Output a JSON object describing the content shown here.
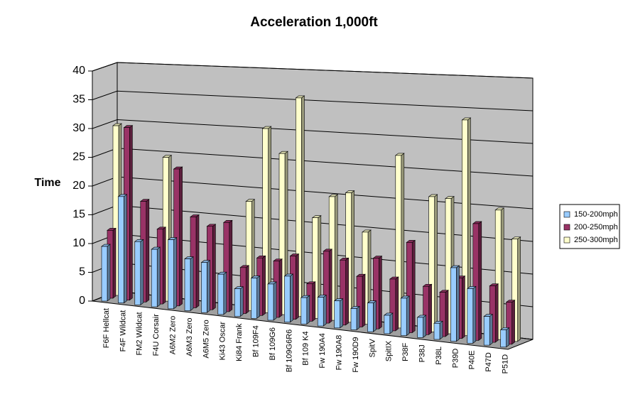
{
  "chart_data": {
    "type": "bar3d",
    "title": "Acceleration 1,000ft",
    "y_label": "Time",
    "categories": [
      "F6F Hellcat",
      "F4F Wildcat",
      "FM2 Wildcat",
      "F4U Corsair",
      "A6M2 Zero",
      "A6M3 Zero",
      "A6M5 Zero",
      "Ki43 Oscar",
      "Ki84 Frank",
      "Bf 109F4",
      "Bf 109G6",
      "Bf 109G6R6",
      "Bf 109 K4",
      "Fw 190A4",
      "Fw 190A8",
      "Fw 190D9",
      "SpitV",
      "SpitIX",
      "P38F",
      "P38J",
      "P38L",
      "P39D",
      "P40E",
      "P47D",
      "P51D"
    ],
    "series": [
      {
        "name": "150-200mph",
        "color": "#99ccff",
        "values": [
          9.5,
          18.5,
          11,
          10,
          12,
          9,
          8.7,
          7,
          4.8,
          7,
          6.3,
          8,
          4.6,
          5,
          4.7,
          3.7,
          5,
          3.2,
          6.5,
          3.5,
          2.8,
          12.8,
          9.5,
          5,
          3
        ]
      },
      {
        "name": "200-250mph",
        "color": "#993366",
        "values": [
          11.8,
          30,
          17.5,
          13,
          23.8,
          15.8,
          14.5,
          15.5,
          8,
          10,
          9.8,
          11,
          6.5,
          12.5,
          11.3,
          8.8,
          12.3,
          9,
          15.7,
          8.4,
          7.7,
          10.5,
          20.3,
          9.8,
          7.3
        ]
      },
      {
        "name": "250-300mph",
        "color": "#ffffcc",
        "values": [
          29.5,
          null,
          null,
          25,
          null,
          null,
          null,
          null,
          19,
          32,
          28,
          38,
          17.5,
          21.5,
          22.5,
          16,
          null,
          30,
          null,
          23.5,
          23.5,
          37.5,
          null,
          22.5,
          17.8
        ]
      }
    ],
    "ylim": [
      0,
      40
    ],
    "yticks": [
      0,
      5,
      10,
      15,
      20,
      25,
      30,
      35,
      40
    ],
    "grid": true,
    "legend": "right"
  }
}
